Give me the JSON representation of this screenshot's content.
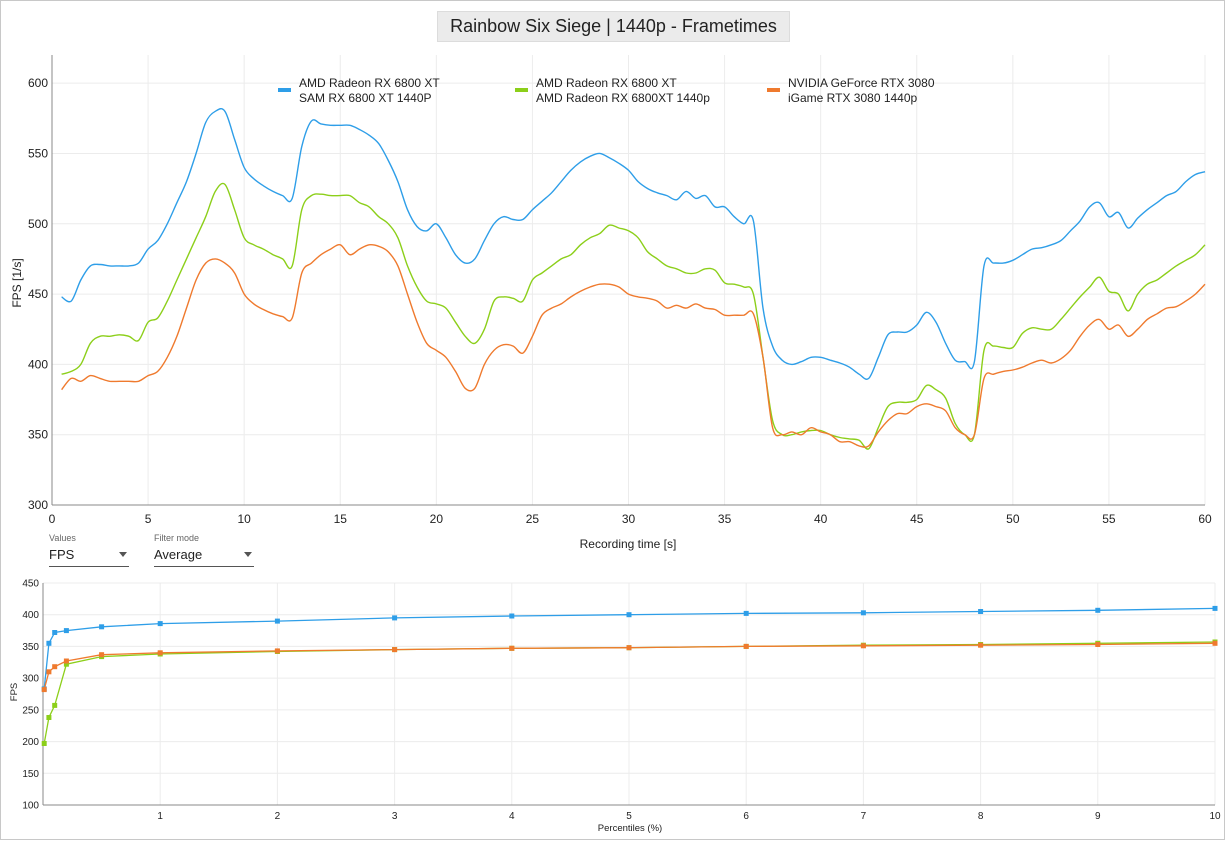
{
  "title": "Rainbow Six Siege | 1440p - Frametimes",
  "controls": {
    "values": {
      "label": "Values",
      "selected": "FPS"
    },
    "filter_mode": {
      "label": "Filter mode",
      "selected": "Average"
    }
  },
  "colors": {
    "blue": "#2e9ee8",
    "green": "#8ccf1a",
    "orange": "#ef7a2e"
  },
  "chart_data": [
    {
      "type": "line",
      "xlabel": "Recording time [s]",
      "ylabel": "FPS [1/s]",
      "xlim": [
        0,
        60
      ],
      "ylim": [
        300,
        620
      ],
      "xticks": [
        0,
        5,
        10,
        15,
        20,
        25,
        30,
        35,
        40,
        45,
        50,
        55,
        60
      ],
      "yticks": [
        300,
        350,
        400,
        450,
        500,
        550,
        600
      ],
      "grid": true,
      "legend_position": "top",
      "series": [
        {
          "name_line1": "AMD Radeon RX 6800 XT",
          "name_line2": "SAM RX 6800 XT 1440P",
          "color": "#2e9ee8",
          "x": [
            0.5,
            1,
            1.5,
            2,
            2.5,
            3,
            3.5,
            4,
            4.5,
            5,
            5.5,
            6,
            6.5,
            7,
            7.5,
            8,
            8.5,
            9,
            9.5,
            10,
            10.5,
            11,
            11.5,
            12,
            12.5,
            13,
            13.5,
            14,
            14.5,
            15,
            15.5,
            16,
            16.5,
            17,
            17.5,
            18,
            18.5,
            19,
            19.5,
            20,
            20.5,
            21,
            21.5,
            22,
            22.5,
            23,
            23.5,
            24,
            24.5,
            25,
            25.5,
            26,
            26.5,
            27,
            27.5,
            28,
            28.5,
            29,
            29.5,
            30,
            30.5,
            31,
            31.5,
            32,
            32.5,
            33,
            33.5,
            34,
            34.5,
            35,
            35.5,
            36,
            36.5,
            37,
            37.5,
            38,
            38.5,
            39,
            39.5,
            40,
            40.5,
            41,
            41.5,
            42,
            42.5,
            43,
            43.5,
            44,
            44.5,
            45,
            45.5,
            46,
            46.5,
            47,
            47.5,
            48,
            48.5,
            49,
            49.5,
            50,
            50.5,
            51,
            51.5,
            52,
            52.5,
            53,
            53.5,
            54,
            54.5,
            55,
            55.5,
            56,
            56.5,
            57,
            57.5,
            58,
            58.5,
            59,
            59.5,
            60
          ],
          "y": [
            448,
            445,
            460,
            470,
            471,
            470,
            470,
            470,
            472,
            482,
            488,
            500,
            515,
            530,
            550,
            572,
            580,
            580,
            560,
            540,
            532,
            527,
            523,
            520,
            518,
            555,
            573,
            571,
            570,
            570,
            570,
            567,
            563,
            557,
            545,
            530,
            510,
            498,
            495,
            500,
            490,
            478,
            472,
            475,
            488,
            500,
            505,
            503,
            503,
            510,
            516,
            522,
            530,
            538,
            544,
            548,
            550,
            547,
            543,
            538,
            530,
            525,
            522,
            520,
            517,
            523,
            518,
            520,
            512,
            512,
            505,
            500,
            502,
            440,
            413,
            403,
            400,
            402,
            405,
            405,
            403,
            401,
            398,
            393,
            390,
            405,
            421,
            423,
            423,
            428,
            437,
            430,
            415,
            403,
            402,
            402,
            470,
            472,
            472,
            474,
            478,
            482,
            483,
            485,
            488,
            495,
            502,
            512,
            515,
            505,
            508,
            497,
            504,
            510,
            515,
            520,
            523,
            530,
            535,
            537
          ]
        },
        {
          "name_line1": "AMD Radeon RX 6800 XT",
          "name_line2": "AMD Radeon RX 6800XT 1440p",
          "color": "#8ccf1a",
          "x": [
            0.5,
            1,
            1.5,
            2,
            2.5,
            3,
            3.5,
            4,
            4.5,
            5,
            5.5,
            6,
            6.5,
            7,
            7.5,
            8,
            8.5,
            9,
            9.5,
            10,
            10.5,
            11,
            11.5,
            12,
            12.5,
            13,
            13.5,
            14,
            14.5,
            15,
            15.5,
            16,
            16.5,
            17,
            17.5,
            18,
            18.5,
            19,
            19.5,
            20,
            20.5,
            21,
            21.5,
            22,
            22.5,
            23,
            23.5,
            24,
            24.5,
            25,
            25.5,
            26,
            26.5,
            27,
            27.5,
            28,
            28.5,
            29,
            29.5,
            30,
            30.5,
            31,
            31.5,
            32,
            32.5,
            33,
            33.5,
            34,
            34.5,
            35,
            35.5,
            36,
            36.5,
            37,
            37.5,
            38,
            38.5,
            39,
            39.5,
            40,
            40.5,
            41,
            41.5,
            42,
            42.5,
            43,
            43.5,
            44,
            44.5,
            45,
            45.5,
            46,
            46.5,
            47,
            47.5,
            48,
            48.5,
            49,
            49.5,
            50,
            50.5,
            51,
            51.5,
            52,
            52.5,
            53,
            53.5,
            54,
            54.5,
            55,
            55.5,
            56,
            56.5,
            57,
            57.5,
            58,
            58.5,
            59,
            59.5,
            60
          ],
          "y": [
            393,
            395,
            400,
            415,
            420,
            420,
            421,
            420,
            417,
            430,
            433,
            445,
            460,
            475,
            490,
            505,
            523,
            528,
            510,
            490,
            485,
            482,
            478,
            475,
            470,
            510,
            520,
            521,
            520,
            520,
            520,
            515,
            512,
            505,
            500,
            490,
            470,
            455,
            445,
            443,
            440,
            430,
            420,
            415,
            425,
            445,
            448,
            447,
            445,
            460,
            465,
            470,
            475,
            478,
            485,
            490,
            493,
            499,
            497,
            495,
            490,
            480,
            475,
            470,
            468,
            465,
            465,
            468,
            467,
            458,
            457,
            455,
            450,
            405,
            360,
            350,
            350,
            352,
            353,
            353,
            350,
            348,
            347,
            346,
            340,
            355,
            370,
            373,
            373,
            375,
            385,
            382,
            376,
            358,
            350,
            350,
            410,
            413,
            412,
            412,
            422,
            426,
            425,
            425,
            432,
            440,
            448,
            455,
            462,
            452,
            450,
            438,
            450,
            457,
            460,
            465,
            470,
            474,
            478,
            485
          ]
        },
        {
          "name_line1": "NVIDIA GeForce RTX 3080",
          "name_line2": "iGame RTX 3080 1440p",
          "color": "#ef7a2e",
          "x": [
            0.5,
            1,
            1.5,
            2,
            2.5,
            3,
            3.5,
            4,
            4.5,
            5,
            5.5,
            6,
            6.5,
            7,
            7.5,
            8,
            8.5,
            9,
            9.5,
            10,
            10.5,
            11,
            11.5,
            12,
            12.5,
            13,
            13.5,
            14,
            14.5,
            15,
            15.5,
            16,
            16.5,
            17,
            17.5,
            18,
            18.5,
            19,
            19.5,
            20,
            20.5,
            21,
            21.5,
            22,
            22.5,
            23,
            23.5,
            24,
            24.5,
            25,
            25.5,
            26,
            26.5,
            27,
            27.5,
            28,
            28.5,
            29,
            29.5,
            30,
            30.5,
            31,
            31.5,
            32,
            32.5,
            33,
            33.5,
            34,
            34.5,
            35,
            35.5,
            36,
            36.5,
            37,
            37.5,
            38,
            38.5,
            39,
            39.5,
            40,
            40.5,
            41,
            41.5,
            42,
            42.5,
            43,
            43.5,
            44,
            44.5,
            45,
            45.5,
            46,
            46.5,
            47,
            47.5,
            48,
            48.5,
            49,
            49.5,
            50,
            50.5,
            51,
            51.5,
            52,
            52.5,
            53,
            53.5,
            54,
            54.5,
            55,
            55.5,
            56,
            56.5,
            57,
            57.5,
            58,
            58.5,
            59,
            59.5,
            60
          ],
          "y": [
            382,
            390,
            388,
            392,
            390,
            388,
            388,
            388,
            388,
            392,
            395,
            405,
            420,
            440,
            460,
            472,
            475,
            472,
            465,
            450,
            443,
            439,
            436,
            434,
            433,
            465,
            472,
            478,
            482,
            485,
            478,
            482,
            485,
            484,
            480,
            470,
            450,
            430,
            415,
            410,
            405,
            395,
            383,
            383,
            400,
            410,
            414,
            413,
            408,
            420,
            435,
            440,
            443,
            448,
            452,
            455,
            457,
            457,
            455,
            450,
            448,
            447,
            445,
            440,
            442,
            440,
            443,
            440,
            439,
            435,
            435,
            435,
            436,
            405,
            355,
            350,
            352,
            350,
            355,
            352,
            350,
            345,
            345,
            342,
            342,
            352,
            360,
            365,
            365,
            370,
            372,
            370,
            367,
            355,
            350,
            350,
            390,
            393,
            395,
            396,
            398,
            401,
            403,
            401,
            404,
            410,
            420,
            428,
            432,
            425,
            428,
            420,
            425,
            432,
            436,
            440,
            441,
            445,
            450,
            457
          ]
        }
      ]
    },
    {
      "type": "line",
      "xlabel": "Percentiles (%)",
      "ylabel": "FPS",
      "xlim": [
        0,
        10
      ],
      "ylim": [
        100,
        450
      ],
      "xticks": [
        1,
        2,
        3,
        4,
        5,
        6,
        7,
        8,
        9,
        10
      ],
      "yticks": [
        100,
        150,
        200,
        250,
        300,
        350,
        400,
        450
      ],
      "grid": true,
      "series": [
        {
          "color": "#2e9ee8",
          "x": [
            0.01,
            0.05,
            0.1,
            0.2,
            0.5,
            1,
            2,
            3,
            4,
            5,
            6,
            7,
            8,
            9,
            10
          ],
          "y": [
            283,
            355,
            372,
            375,
            381,
            386,
            390,
            395,
            398,
            400,
            402,
            403,
            405,
            407,
            410
          ]
        },
        {
          "color": "#8ccf1a",
          "x": [
            0.01,
            0.05,
            0.1,
            0.2,
            0.5,
            1,
            2,
            3,
            4,
            5,
            6,
            7,
            8,
            9,
            10
          ],
          "y": [
            197,
            238,
            257,
            322,
            334,
            338,
            342,
            345,
            347,
            348,
            350,
            352,
            353,
            355,
            357
          ]
        },
        {
          "color": "#ef7a2e",
          "x": [
            0.01,
            0.05,
            0.1,
            0.2,
            0.5,
            1,
            2,
            3,
            4,
            5,
            6,
            7,
            8,
            9,
            10
          ],
          "y": [
            282,
            310,
            318,
            327,
            337,
            340,
            343,
            345,
            347,
            348,
            350,
            351,
            352,
            353,
            355
          ]
        }
      ]
    }
  ]
}
